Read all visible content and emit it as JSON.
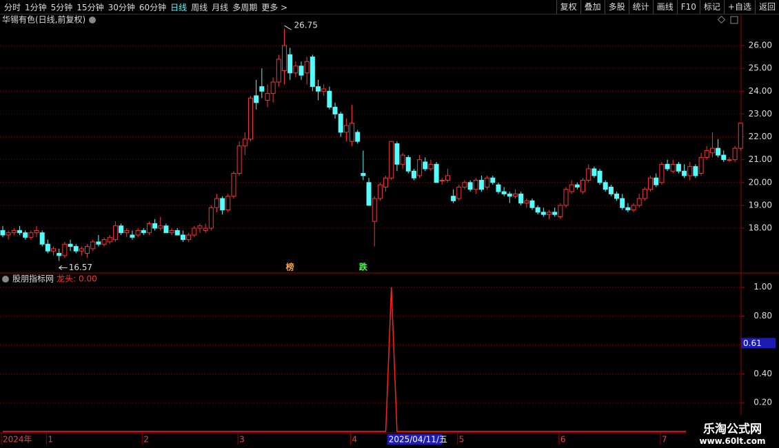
{
  "toolbar": {
    "periods": [
      "分时",
      "1分钟",
      "5分钟",
      "15分钟",
      "30分钟",
      "60分钟",
      "日线",
      "周线",
      "月线",
      "多周期",
      "更多 >"
    ],
    "active_period": 6,
    "buttons": [
      "复权",
      "叠加",
      "多股",
      "统计",
      "画线",
      "F10",
      "标记",
      "+自选",
      "返回"
    ]
  },
  "chart_data": [
    {
      "type": "candlestick",
      "title": "华锡有色(日线,前复权)",
      "up_color": "#ff3232",
      "down_color": "#54fcfc",
      "ylim": [
        16.07,
        27.39
      ],
      "yticks": [
        {
          "value": 18,
          "label": "18.00"
        },
        {
          "value": 19,
          "label": "19.00"
        },
        {
          "value": 20,
          "label": "20.00"
        },
        {
          "value": 21,
          "label": "21.00"
        },
        {
          "value": 22,
          "label": "22.00"
        },
        {
          "value": 23,
          "label": "23.00"
        },
        {
          "value": 24,
          "label": "24.00"
        },
        {
          "value": 25,
          "label": "25.00"
        },
        {
          "value": 26,
          "label": "26.00"
        }
      ],
      "grid": true,
      "candles": [
        [
          17.9,
          18.1,
          17.6,
          17.7
        ],
        [
          17.7,
          17.9,
          17.5,
          17.8
        ],
        [
          17.8,
          18.0,
          17.7,
          17.9
        ],
        [
          17.9,
          18.1,
          17.7,
          17.8
        ],
        [
          17.8,
          17.9,
          17.5,
          17.6
        ],
        [
          17.6,
          17.9,
          17.5,
          17.8
        ],
        [
          17.8,
          18.1,
          17.6,
          17.9
        ],
        [
          17.8,
          17.9,
          17.2,
          17.3
        ],
        [
          17.3,
          17.5,
          16.9,
          17.0
        ],
        [
          17.0,
          17.2,
          16.8,
          17.1
        ],
        [
          16.9,
          17.1,
          16.57,
          16.8
        ],
        [
          16.8,
          17.4,
          16.7,
          17.3
        ],
        [
          17.3,
          17.5,
          17.0,
          17.2
        ],
        [
          17.2,
          17.3,
          16.9,
          17.0
        ],
        [
          17.0,
          17.2,
          16.8,
          17.1
        ],
        [
          16.9,
          17.3,
          16.7,
          17.2
        ],
        [
          17.1,
          17.5,
          17.0,
          17.4
        ],
        [
          17.4,
          17.7,
          17.2,
          17.3
        ],
        [
          17.3,
          17.6,
          17.2,
          17.5
        ],
        [
          17.4,
          17.7,
          17.3,
          17.6
        ],
        [
          17.5,
          18.3,
          17.4,
          18.1
        ],
        [
          18.1,
          18.2,
          17.7,
          17.8
        ],
        [
          17.8,
          18.0,
          17.6,
          17.9
        ],
        [
          17.7,
          17.9,
          17.5,
          17.6
        ],
        [
          17.7,
          18.0,
          17.6,
          17.9
        ],
        [
          17.9,
          18.0,
          17.7,
          17.8
        ],
        [
          17.8,
          18.3,
          17.7,
          18.2
        ],
        [
          18.2,
          18.4,
          17.9,
          18.0
        ],
        [
          18.0,
          18.5,
          17.9,
          18.1
        ],
        [
          18.1,
          18.2,
          17.8,
          17.8
        ],
        [
          17.8,
          18.0,
          17.7,
          17.9
        ],
        [
          17.9,
          18.0,
          17.7,
          17.7
        ],
        [
          17.7,
          17.9,
          17.4,
          17.5
        ],
        [
          17.5,
          17.8,
          17.4,
          17.7
        ],
        [
          17.7,
          18.1,
          17.6,
          18.0
        ],
        [
          18.0,
          18.2,
          17.8,
          18.1
        ],
        [
          17.9,
          18.2,
          17.8,
          18.0
        ],
        [
          18.0,
          19.0,
          17.9,
          18.9
        ],
        [
          18.9,
          19.5,
          18.7,
          19.3
        ],
        [
          19.3,
          19.4,
          18.6,
          18.8
        ],
        [
          18.8,
          19.5,
          18.7,
          19.4
        ],
        [
          19.4,
          20.5,
          19.3,
          20.4
        ],
        [
          20.4,
          21.8,
          20.3,
          21.6
        ],
        [
          21.6,
          22.2,
          21.2,
          21.9
        ],
        [
          21.9,
          23.8,
          21.8,
          23.7
        ],
        [
          23.8,
          24.5,
          23.2,
          23.5
        ],
        [
          24.2,
          25.0,
          23.7,
          24.0
        ],
        [
          23.6,
          24.3,
          23.3,
          23.9
        ],
        [
          23.9,
          24.6,
          23.5,
          24.4
        ],
        [
          24.4,
          25.6,
          24.2,
          25.4
        ],
        [
          24.9,
          26.75,
          24.3,
          26.0
        ],
        [
          25.6,
          25.9,
          24.5,
          24.8
        ],
        [
          24.8,
          25.3,
          24.6,
          25.1
        ],
        [
          25.1,
          25.3,
          24.5,
          24.7
        ],
        [
          24.8,
          25.5,
          24.3,
          25.3
        ],
        [
          25.5,
          25.6,
          24.0,
          24.2
        ],
        [
          24.2,
          24.5,
          23.6,
          24.0
        ],
        [
          24.0,
          24.3,
          23.8,
          24.1
        ],
        [
          24.0,
          24.2,
          23.2,
          23.3
        ],
        [
          23.3,
          23.5,
          22.8,
          23.0
        ],
        [
          23.0,
          23.1,
          22.0,
          22.2
        ],
        [
          22.2,
          22.8,
          21.8,
          22.5
        ],
        [
          21.8,
          23.4,
          21.6,
          22.6
        ],
        [
          22.2,
          22.3,
          21.7,
          21.8
        ],
        [
          20.4,
          21.4,
          20.1,
          20.3
        ],
        [
          20.0,
          20.2,
          19.0,
          19.0
        ],
        [
          18.3,
          19.4,
          17.2,
          19.3
        ],
        [
          19.3,
          20.0,
          19.2,
          19.9
        ],
        [
          19.8,
          20.3,
          19.6,
          20.2
        ],
        [
          20.2,
          21.8,
          20.1,
          21.8
        ],
        [
          21.7,
          21.8,
          20.5,
          20.8
        ],
        [
          20.8,
          21.3,
          20.6,
          21.2
        ],
        [
          21.1,
          21.2,
          20.4,
          20.5
        ],
        [
          20.5,
          20.6,
          20.1,
          20.2
        ],
        [
          20.3,
          21.2,
          20.2,
          21.0
        ],
        [
          20.9,
          21.1,
          20.5,
          20.6
        ],
        [
          20.6,
          21.0,
          20.5,
          20.8
        ],
        [
          20.8,
          20.9,
          20.0,
          20.0
        ],
        [
          20.1,
          20.2,
          19.9,
          20.1
        ],
        [
          20.1,
          20.6,
          20.0,
          20.3
        ],
        [
          19.4,
          19.7,
          19.1,
          19.2
        ],
        [
          19.3,
          19.9,
          19.2,
          19.8
        ],
        [
          19.8,
          20.1,
          19.7,
          20.0
        ],
        [
          20.0,
          20.1,
          19.6,
          19.7
        ],
        [
          19.7,
          20.2,
          19.5,
          20.1
        ],
        [
          20.1,
          20.3,
          19.6,
          19.7
        ],
        [
          19.8,
          20.3,
          19.7,
          20.2
        ],
        [
          20.2,
          20.3,
          19.9,
          20.0
        ],
        [
          19.9,
          20.0,
          19.5,
          19.6
        ],
        [
          19.6,
          19.8,
          19.4,
          19.5
        ],
        [
          19.5,
          19.6,
          19.1,
          19.4
        ],
        [
          19.4,
          19.7,
          19.3,
          19.5
        ],
        [
          19.5,
          19.6,
          19.0,
          19.1
        ],
        [
          19.1,
          19.3,
          18.9,
          19.2
        ],
        [
          19.2,
          19.3,
          18.8,
          18.9
        ],
        [
          18.9,
          19.0,
          18.6,
          18.7
        ],
        [
          18.7,
          18.9,
          18.5,
          18.6
        ],
        [
          18.6,
          18.8,
          18.4,
          18.7
        ],
        [
          18.7,
          18.9,
          18.5,
          18.6
        ],
        [
          18.5,
          19.1,
          18.4,
          19.0
        ],
        [
          19.0,
          19.8,
          18.9,
          19.7
        ],
        [
          19.6,
          20.1,
          19.5,
          19.9
        ],
        [
          19.9,
          20.0,
          19.7,
          19.8
        ],
        [
          19.6,
          20.2,
          19.5,
          20.1
        ],
        [
          20.1,
          20.8,
          20.0,
          20.6
        ],
        [
          20.6,
          20.7,
          20.2,
          20.3
        ],
        [
          20.5,
          20.6,
          19.9,
          20.0
        ],
        [
          20.0,
          20.1,
          19.6,
          19.7
        ],
        [
          19.8,
          19.9,
          19.4,
          19.5
        ],
        [
          19.5,
          19.6,
          19.2,
          19.3
        ],
        [
          19.3,
          19.5,
          18.8,
          18.9
        ],
        [
          18.9,
          19.1,
          18.7,
          18.8
        ],
        [
          18.8,
          19.1,
          18.7,
          19.0
        ],
        [
          19.0,
          19.5,
          18.9,
          19.3
        ],
        [
          19.3,
          19.8,
          19.2,
          19.7
        ],
        [
          19.7,
          20.3,
          19.6,
          20.2
        ],
        [
          20.2,
          20.4,
          19.8,
          19.9
        ],
        [
          20.0,
          20.9,
          19.9,
          20.8
        ],
        [
          20.8,
          21.0,
          20.5,
          20.6
        ],
        [
          20.5,
          21.0,
          20.4,
          20.8
        ],
        [
          20.8,
          20.9,
          20.4,
          20.5
        ],
        [
          20.5,
          20.8,
          20.2,
          20.3
        ],
        [
          20.3,
          20.9,
          20.1,
          20.7
        ],
        [
          20.7,
          20.8,
          20.2,
          20.3
        ],
        [
          20.4,
          21.3,
          20.3,
          21.1
        ],
        [
          21.1,
          21.6,
          21.0,
          21.4
        ],
        [
          21.3,
          22.2,
          21.1,
          21.5
        ],
        [
          21.5,
          21.9,
          21.1,
          21.2
        ],
        [
          21.2,
          21.4,
          20.9,
          21.0
        ],
        [
          21.0,
          21.1,
          20.9,
          21.0
        ],
        [
          21.0,
          21.6,
          20.9,
          21.5
        ],
        [
          21.5,
          22.6,
          21.4,
          22.6
        ]
      ],
      "max_label": {
        "index": 50,
        "value": 26.75
      },
      "min_label": {
        "index": 10,
        "value": 16.57
      },
      "signals": [
        {
          "index": 51,
          "label": "榜",
          "color": "#ffa040"
        },
        {
          "index": 64,
          "label": "跌",
          "color": "#40ff40"
        }
      ]
    },
    {
      "type": "line",
      "title": "股朋指标网",
      "ylim": [
        0,
        1.08
      ],
      "yticks": [
        {
          "value": 0.2,
          "label": "0.20"
        },
        {
          "value": 0.4,
          "label": "0.40"
        },
        {
          "value": 0.6,
          "label": "0.60"
        },
        {
          "value": 0.8,
          "label": "0.80"
        },
        {
          "value": 1,
          "label": "1.00"
        }
      ],
      "grid": true,
      "series": [
        {
          "name": "龙头:",
          "readout": "0.00",
          "color": "#ff2020",
          "values": [
            0,
            0,
            0,
            0,
            0,
            0,
            0,
            0,
            0,
            0,
            0,
            0,
            0,
            0,
            0,
            0,
            0,
            0,
            0,
            0,
            0,
            0,
            0,
            0,
            0,
            0,
            0,
            0,
            0,
            0,
            0,
            0,
            0,
            0,
            0,
            0,
            0,
            0,
            0,
            0,
            0,
            0,
            0,
            0,
            0,
            0,
            0,
            0,
            0,
            0,
            0,
            0,
            0,
            0,
            0,
            0,
            0,
            0,
            0,
            0,
            0,
            0,
            0,
            0,
            0,
            0,
            0,
            0,
            0,
            1,
            0,
            0,
            0,
            0,
            0,
            0,
            0,
            0,
            0,
            0,
            0,
            0,
            0,
            0,
            0,
            0,
            0,
            0,
            0,
            0,
            0,
            0,
            0,
            0,
            0,
            0,
            0,
            0,
            0,
            0,
            0,
            0,
            0,
            0,
            0,
            0,
            0,
            0,
            0,
            0,
            0,
            0,
            0,
            0,
            0,
            0,
            0,
            0,
            0,
            0,
            0,
            0,
            0,
            0,
            0,
            0,
            0,
            0,
            0,
            0,
            0,
            0
          ]
        }
      ],
      "cursor_value": 0.61
    }
  ],
  "x_axis": {
    "labels": [
      {
        "index": 0,
        "label": "2024年"
      },
      {
        "index": 8,
        "label": "1"
      },
      {
        "index": 25,
        "label": "2"
      },
      {
        "index": 42,
        "label": "3"
      },
      {
        "index": 62,
        "label": "4"
      },
      {
        "index": 81,
        "label": "5"
      },
      {
        "index": 99,
        "label": "6"
      },
      {
        "index": 117,
        "label": "7"
      }
    ],
    "cursor": {
      "index": 69,
      "label": "2025/04/11/五"
    }
  },
  "watermark": {
    "name": "乐淘公式网",
    "url": "www.60lt.com"
  }
}
